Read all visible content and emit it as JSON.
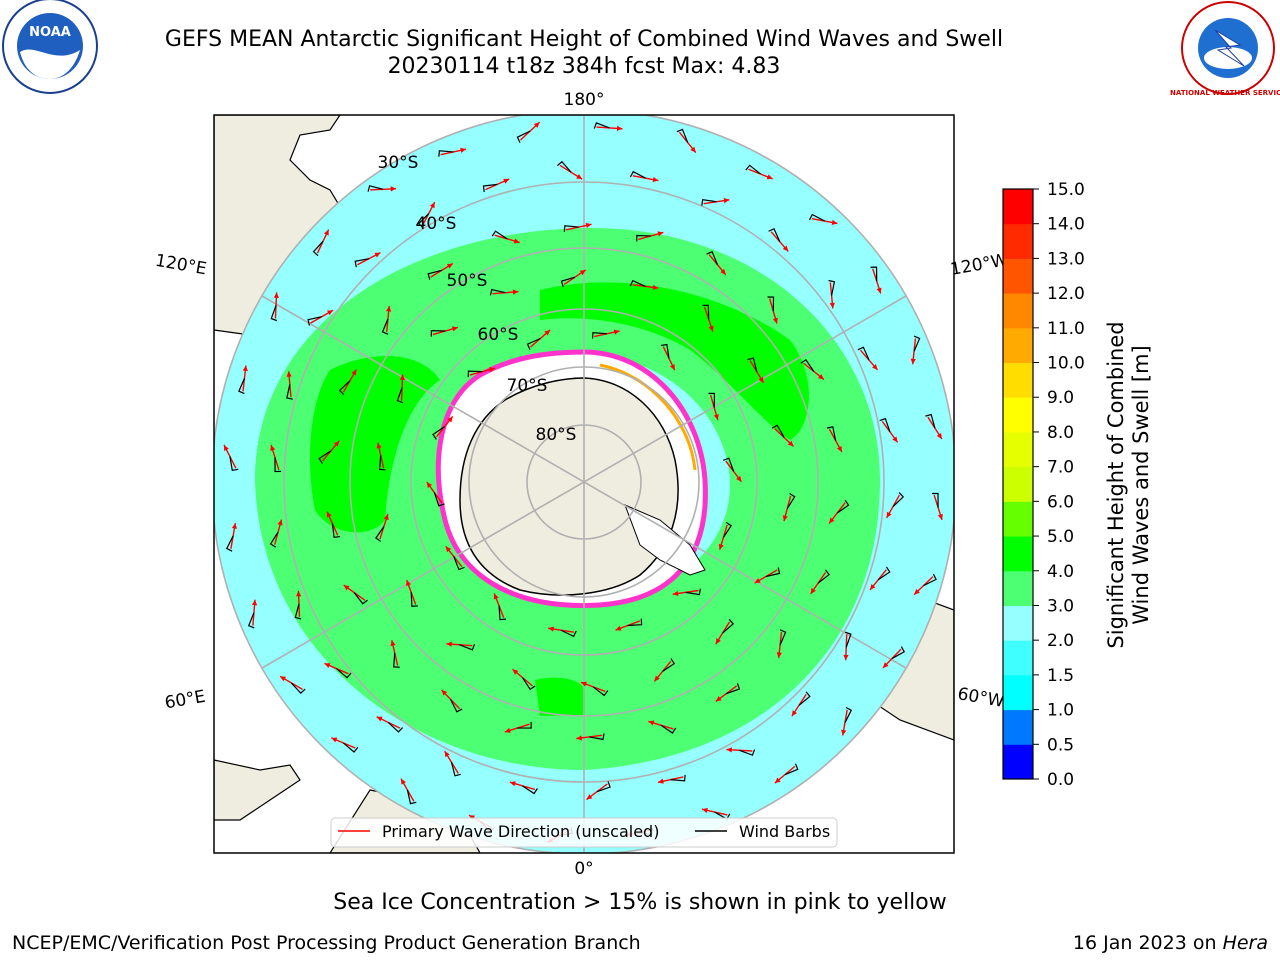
{
  "title_line1": "GEFS MEAN Antarctic Significant Height of Combined Wind Waves and Swell",
  "title_line2": "20230114 t18z 384h fcst   Max: 4.83",
  "subtitle_note": "Sea Ice Concentration > 15% is shown in pink to yellow",
  "footer_left": "NCEP/EMC/Verification Post Processing Product Generation Branch",
  "footer_right_date": "16 Jan 2023 on ",
  "footer_right_host": "Hera",
  "logos": {
    "noaa": "NOAA",
    "nws": "NATIONAL WEATHER SERVICE"
  },
  "longitude_labels": {
    "top": "180°",
    "bottom": "0°",
    "upper_left": "120°E",
    "upper_right": "120°W",
    "lower_left": "60°E",
    "lower_right": "60°W"
  },
  "latitude_labels": [
    "30°S",
    "40°S",
    "50°S",
    "60°S",
    "70°S",
    "80°S"
  ],
  "legend": {
    "wave": "Primary Wave Direction (unscaled)",
    "wind": "Wind Barbs"
  },
  "colorbar": {
    "label_line1": "Significant Height of Combined",
    "label_line2": "Wind Waves and Swell [m]",
    "ticks": [
      "0.0",
      "0.5",
      "1.0",
      "1.5",
      "2.0",
      "3.0",
      "4.0",
      "5.0",
      "6.0",
      "7.0",
      "8.0",
      "9.0",
      "10.0",
      "11.0",
      "12.0",
      "13.0",
      "14.0",
      "15.0"
    ],
    "colors": [
      "#0000ff",
      "#0078ff",
      "#00ffff",
      "#40ffff",
      "#96ffff",
      "#4dff73",
      "#00ff00",
      "#66ff00",
      "#ccff00",
      "#e6ff00",
      "#ffff00",
      "#ffdd00",
      "#ffaa00",
      "#ff8800",
      "#ff5500",
      "#ff2a00",
      "#ff0000"
    ]
  },
  "colors": {
    "land": "#efede0",
    "ocean_low": "#96ffff",
    "ocean_mid": "#4dff73",
    "ocean_high": "#00ff00",
    "ice_edge": "#ff33cc",
    "arrow": "#ff0000"
  }
}
